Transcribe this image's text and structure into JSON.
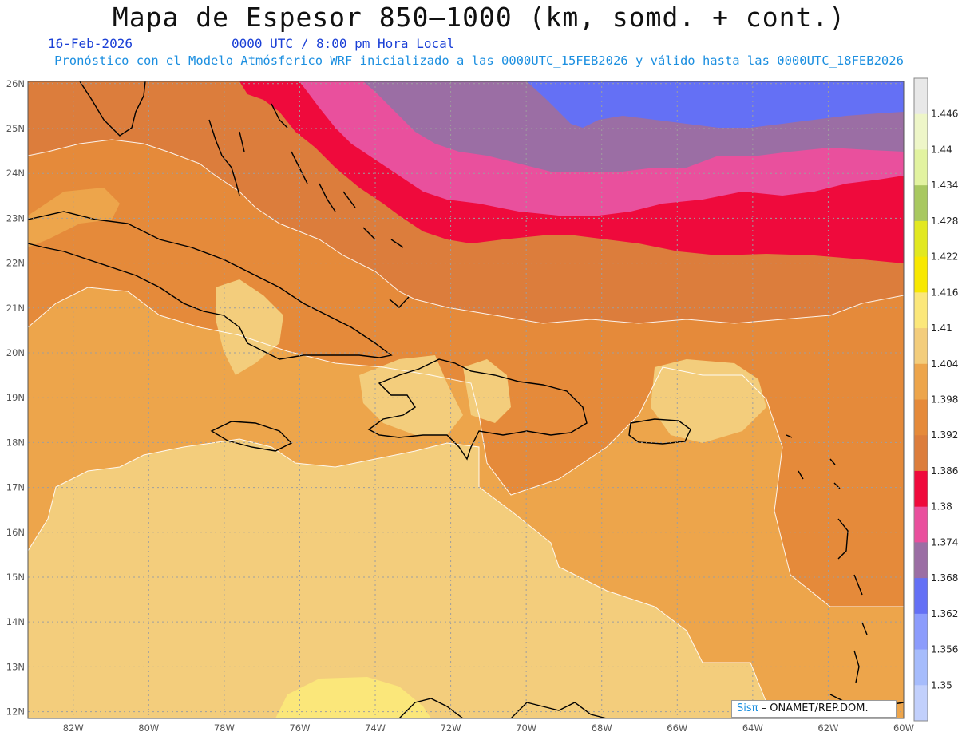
{
  "header": {
    "title": "Mapa de Espesor 850–1000 (km, somd. + cont.)",
    "date": "16-Feb-2026",
    "time": "0000 UTC / 8:00 pm Hora Local",
    "description": "Pronóstico con el Modelo Atmósferico WRF inicializado a las 0000UTC_15FEB2026 y válido hasta las  0000UTC_18FEB2026"
  },
  "axes": {
    "lon_labels": [
      "82W",
      "80W",
      "78W",
      "76W",
      "74W",
      "72W",
      "70W",
      "68W",
      "66W",
      "64W",
      "62W",
      "60W"
    ],
    "lat_labels": [
      "26N",
      "25N",
      "24N",
      "23N",
      "22N",
      "21N",
      "20N",
      "19N",
      "18N",
      "17N",
      "16N",
      "15N",
      "14N",
      "13N",
      "12N"
    ],
    "lon_range": [
      -83.2,
      -60
    ],
    "lat_range": [
      11.85,
      26.05
    ]
  },
  "legend": {
    "levels": [
      "1.446",
      "1.44",
      "1.434",
      "1.428",
      "1.422",
      "1.416",
      "1.41",
      "1.404",
      "1.398",
      "1.392",
      "1.386",
      "1.38",
      "1.374",
      "1.368",
      "1.362",
      "1.356",
      "1.35"
    ],
    "colors": [
      "#e8e8e8",
      "#eef6c8",
      "#e2f3a0",
      "#a8c860",
      "#e2e820",
      "#f8e800",
      "#fbe77a",
      "#f3cd7c",
      "#eda54b",
      "#e58a3a",
      "#dc7d3c",
      "#ef0a3c",
      "#e9509d",
      "#9b6ea4",
      "#6470f5",
      "#8c9cfc",
      "#a6bcfc",
      "#c2d0fc"
    ]
  },
  "credit": {
    "brand": "Sisπ",
    "text": "– ONAMET/REP.DOM."
  },
  "colors": {
    "c1392": "#e58a3a",
    "c1398": "#eda54b",
    "c1404": "#f3cd7c",
    "c1410": "#fbe77a",
    "c1386": "#dc7d3c",
    "c1380": "#ef0a3c",
    "c1374": "#e9509d",
    "c1368": "#9b6ea4",
    "c1362": "#6470f5"
  }
}
